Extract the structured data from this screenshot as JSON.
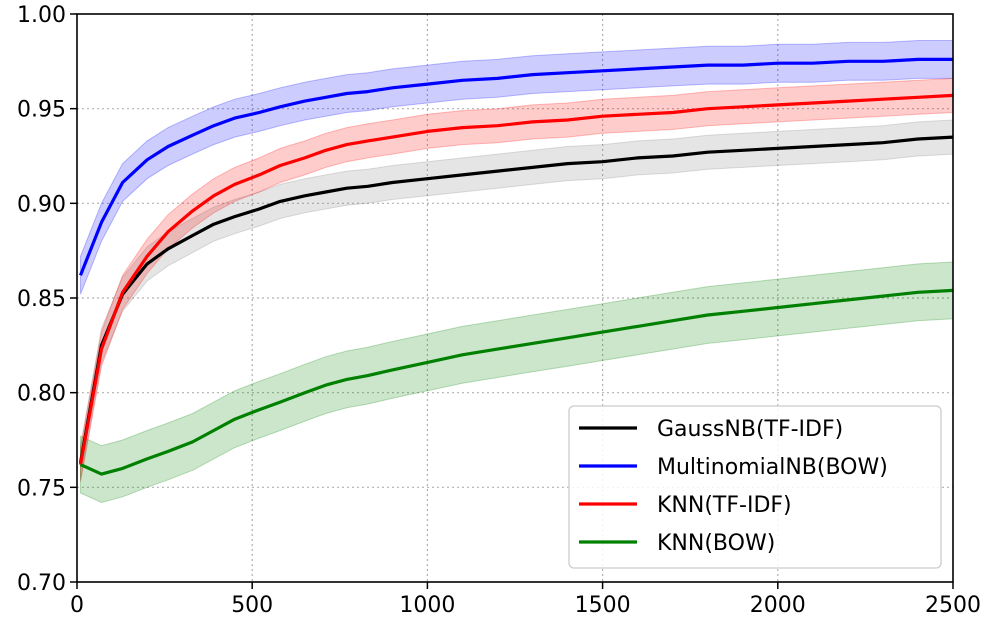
{
  "chart_data": {
    "type": "line",
    "title": "",
    "xlabel": "",
    "ylabel": "",
    "xlim": [
      0,
      2500
    ],
    "ylim": [
      0.7,
      1.0
    ],
    "x_ticks": [
      0,
      500,
      1000,
      1500,
      2000,
      2500
    ],
    "x_tick_labels": [
      "0",
      "500",
      "1000",
      "1500",
      "2000",
      "2500"
    ],
    "y_ticks": [
      0.7,
      0.75,
      0.8,
      0.85,
      0.9,
      0.95,
      1.0
    ],
    "y_tick_labels": [
      "0.70",
      "0.75",
      "0.80",
      "0.85",
      "0.90",
      "0.95",
      "1.00"
    ],
    "grid": true,
    "legend_position": "lower-right",
    "x": [
      10,
      70,
      130,
      200,
      260,
      330,
      390,
      450,
      520,
      580,
      650,
      710,
      770,
      830,
      900,
      1000,
      1100,
      1200,
      1300,
      1400,
      1500,
      1600,
      1700,
      1800,
      1900,
      2000,
      2100,
      2200,
      2300,
      2400,
      2500
    ],
    "series": [
      {
        "name": "GaussNB(TF-IDF)",
        "color": "#000000",
        "band_color": "#7f7f7f",
        "values": [
          0.763,
          0.825,
          0.852,
          0.868,
          0.876,
          0.883,
          0.889,
          0.893,
          0.897,
          0.901,
          0.904,
          0.906,
          0.908,
          0.909,
          0.911,
          0.913,
          0.915,
          0.917,
          0.919,
          0.921,
          0.922,
          0.924,
          0.925,
          0.927,
          0.928,
          0.929,
          0.93,
          0.931,
          0.932,
          0.934,
          0.935
        ],
        "band": 0.009
      },
      {
        "name": "MultinomialNB(BOW)",
        "color": "#0000ff",
        "band_color": "#0000ff",
        "values": [
          0.862,
          0.89,
          0.911,
          0.923,
          0.93,
          0.936,
          0.941,
          0.945,
          0.948,
          0.951,
          0.954,
          0.956,
          0.958,
          0.959,
          0.961,
          0.963,
          0.965,
          0.966,
          0.968,
          0.969,
          0.97,
          0.971,
          0.972,
          0.973,
          0.973,
          0.974,
          0.974,
          0.975,
          0.975,
          0.976,
          0.976
        ],
        "band": 0.01
      },
      {
        "name": "KNN(TF-IDF)",
        "color": "#ff0000",
        "band_color": "#ff0000",
        "values": [
          0.762,
          0.823,
          0.853,
          0.872,
          0.885,
          0.896,
          0.904,
          0.91,
          0.915,
          0.92,
          0.924,
          0.928,
          0.931,
          0.933,
          0.935,
          0.938,
          0.94,
          0.941,
          0.943,
          0.944,
          0.946,
          0.947,
          0.948,
          0.95,
          0.951,
          0.952,
          0.953,
          0.954,
          0.955,
          0.956,
          0.957
        ],
        "band": 0.009
      },
      {
        "name": "KNN(BOW)",
        "color": "#008000",
        "band_color": "#008000",
        "values": [
          0.762,
          0.757,
          0.76,
          0.765,
          0.769,
          0.774,
          0.78,
          0.786,
          0.791,
          0.795,
          0.8,
          0.804,
          0.807,
          0.809,
          0.812,
          0.816,
          0.82,
          0.823,
          0.826,
          0.829,
          0.832,
          0.835,
          0.838,
          0.841,
          0.843,
          0.845,
          0.847,
          0.849,
          0.851,
          0.853,
          0.854
        ],
        "band": 0.015
      }
    ]
  }
}
